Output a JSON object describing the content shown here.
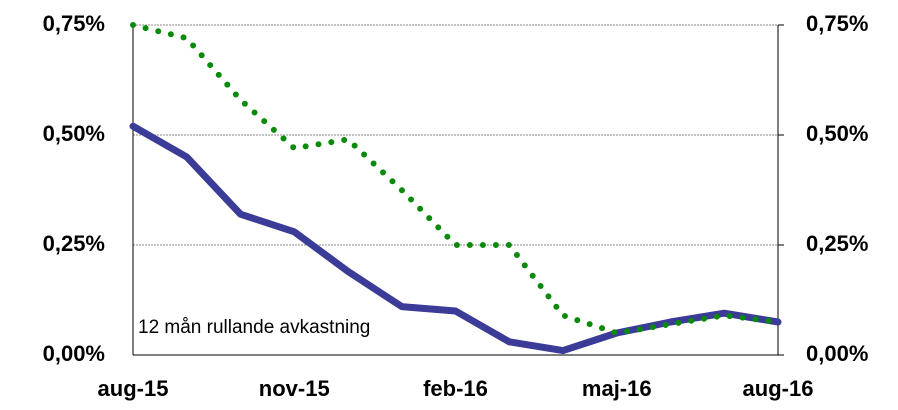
{
  "chart_data": {
    "type": "line",
    "annotation": "12 mån rullande avkastning",
    "categories": [
      "aug-15",
      null,
      null,
      "nov-15",
      null,
      null,
      "feb-16",
      null,
      null,
      "maj-16",
      null,
      null,
      "aug-16"
    ],
    "series": [
      {
        "color": "#3b3b98",
        "style": "solid",
        "values": [
          0.52,
          0.45,
          0.32,
          0.28,
          0.19,
          0.11,
          0.1,
          0.03,
          0.01,
          0.05,
          0.075,
          0.095,
          0.075
        ]
      },
      {
        "color": "#0a8a0a",
        "style": "dotted",
        "values": [
          0.75,
          0.72,
          0.58,
          0.47,
          0.49,
          0.375,
          0.25,
          0.25,
          0.09,
          0.05,
          0.07,
          0.09,
          0.075
        ]
      }
    ],
    "ylim": [
      0,
      0.75
    ],
    "yticks": [
      {
        "value": 0,
        "label": "0,00%"
      },
      {
        "value": 0.25,
        "label": "0,25%"
      },
      {
        "value": 0.5,
        "label": "0,50%"
      },
      {
        "value": 0.75,
        "label": "0,75%"
      }
    ],
    "y2lim": [
      0,
      0.75
    ],
    "y2ticks": [
      {
        "value": 0,
        "label": "0,00%"
      },
      {
        "value": 0.25,
        "label": "0,25%"
      },
      {
        "value": 0.5,
        "label": "0,50%"
      },
      {
        "value": 0.75,
        "label": "0,75%"
      }
    ],
    "grid": true
  }
}
